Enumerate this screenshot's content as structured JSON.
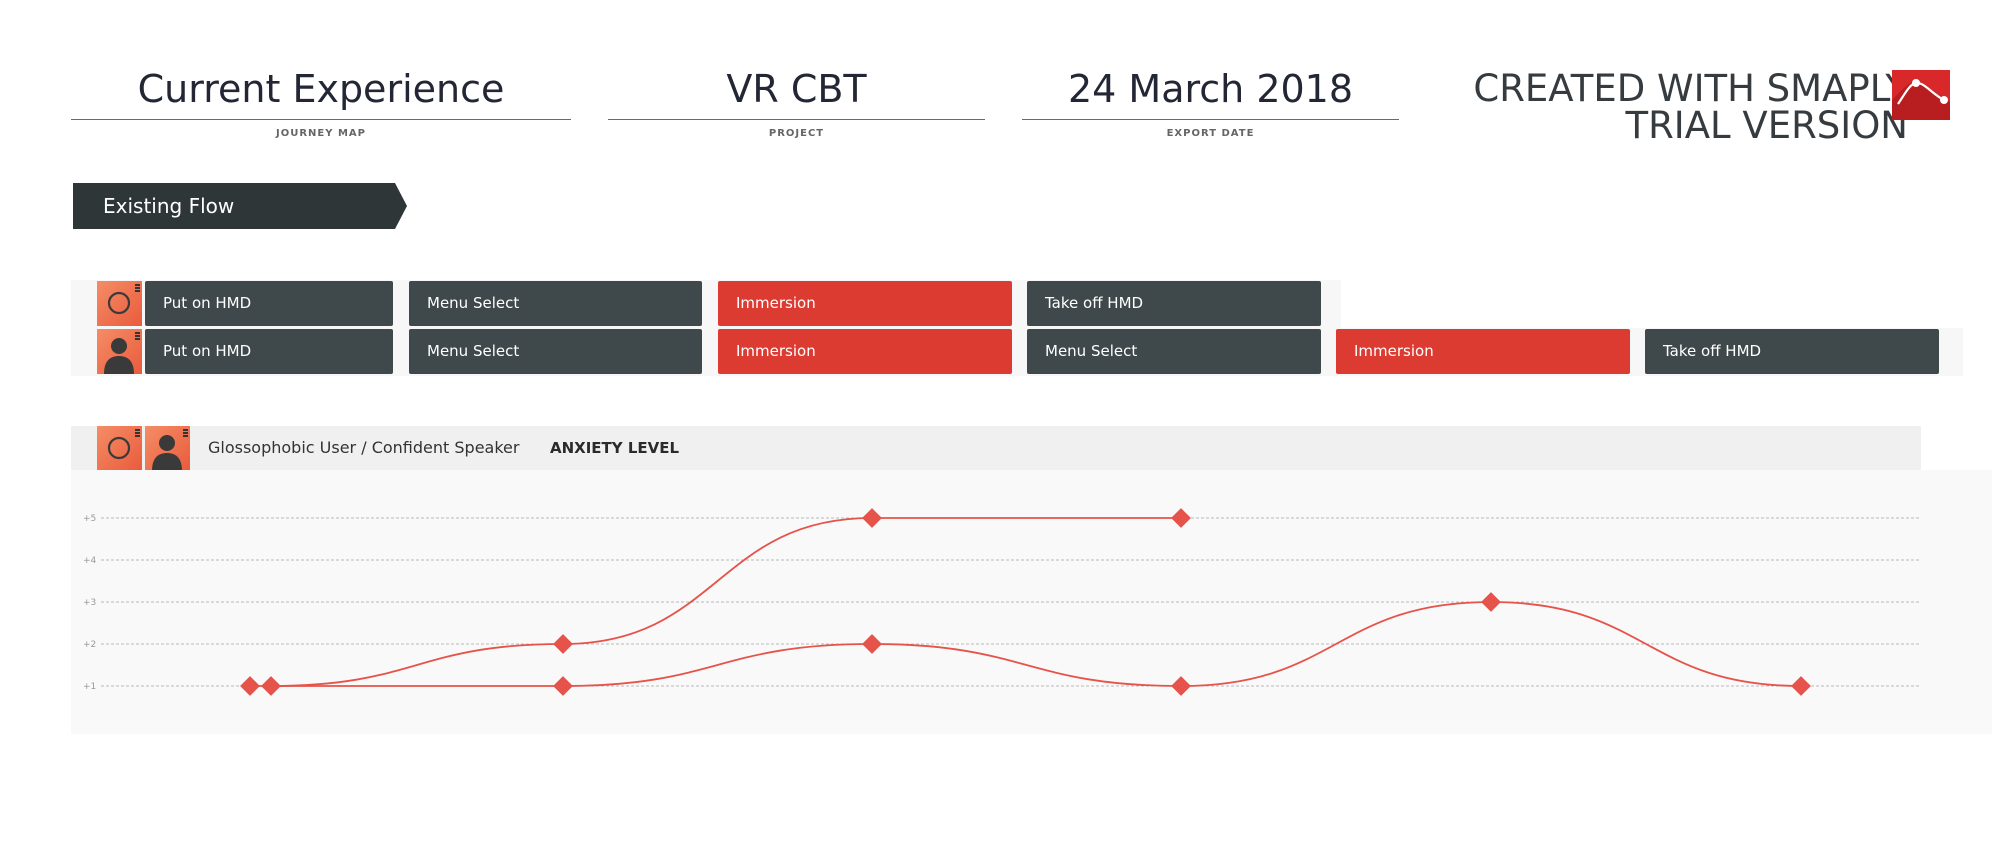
{
  "header": {
    "journey_map": {
      "value": "Current Experience",
      "label": "JOURNEY MAP"
    },
    "project": {
      "value": "VR CBT",
      "label": "PROJECT"
    },
    "export_date": {
      "value": "24 March 2018",
      "label": "EXPORT DATE"
    },
    "brand_line1": "CREATED WITH SMAPLY",
    "brand_line2": "TRIAL VERSION"
  },
  "section": {
    "title": "Existing Flow"
  },
  "lanes": [
    {
      "persona_icon": "circle-persona-icon",
      "steps": [
        {
          "label": "Put on HMD",
          "kind": "neutral"
        },
        {
          "label": "Menu Select",
          "kind": "neutral"
        },
        {
          "label": "Immersion",
          "kind": "highlight"
        },
        {
          "label": "Take off HMD",
          "kind": "neutral"
        }
      ]
    },
    {
      "persona_icon": "user-persona-icon",
      "steps": [
        {
          "label": "Put on HMD",
          "kind": "neutral"
        },
        {
          "label": "Menu Select",
          "kind": "neutral"
        },
        {
          "label": "Immersion",
          "kind": "highlight"
        },
        {
          "label": "Menu Select",
          "kind": "neutral"
        },
        {
          "label": "Immersion",
          "kind": "highlight"
        },
        {
          "label": "Take off HMD",
          "kind": "neutral"
        }
      ]
    }
  ],
  "chart_header": {
    "persona_title": "Glossophobic User / Confident Speaker",
    "metric": "ANXIETY LEVEL"
  },
  "colors": {
    "dark": "#3f484b",
    "red": "#dc3b31",
    "line": "#e5534b",
    "persona": "#ef7452"
  },
  "chart_data": {
    "type": "line",
    "title": "ANXIETY LEVEL",
    "ylim": [
      0,
      6
    ],
    "y_ticks": [
      "+1",
      "+2",
      "+3",
      "+4",
      "+5"
    ],
    "y_tick_values": [
      1,
      2,
      3,
      4,
      5
    ],
    "grid": true,
    "x_columns": [
      0,
      1,
      2,
      3,
      4,
      5
    ],
    "series": [
      {
        "persona": "circle",
        "x": [
          0,
          1,
          2,
          3
        ],
        "y": [
          1,
          2,
          5,
          5
        ]
      },
      {
        "persona": "user",
        "x": [
          0,
          1,
          2,
          3,
          4,
          5
        ],
        "y": [
          1,
          1,
          2,
          1,
          3,
          1
        ]
      }
    ]
  }
}
